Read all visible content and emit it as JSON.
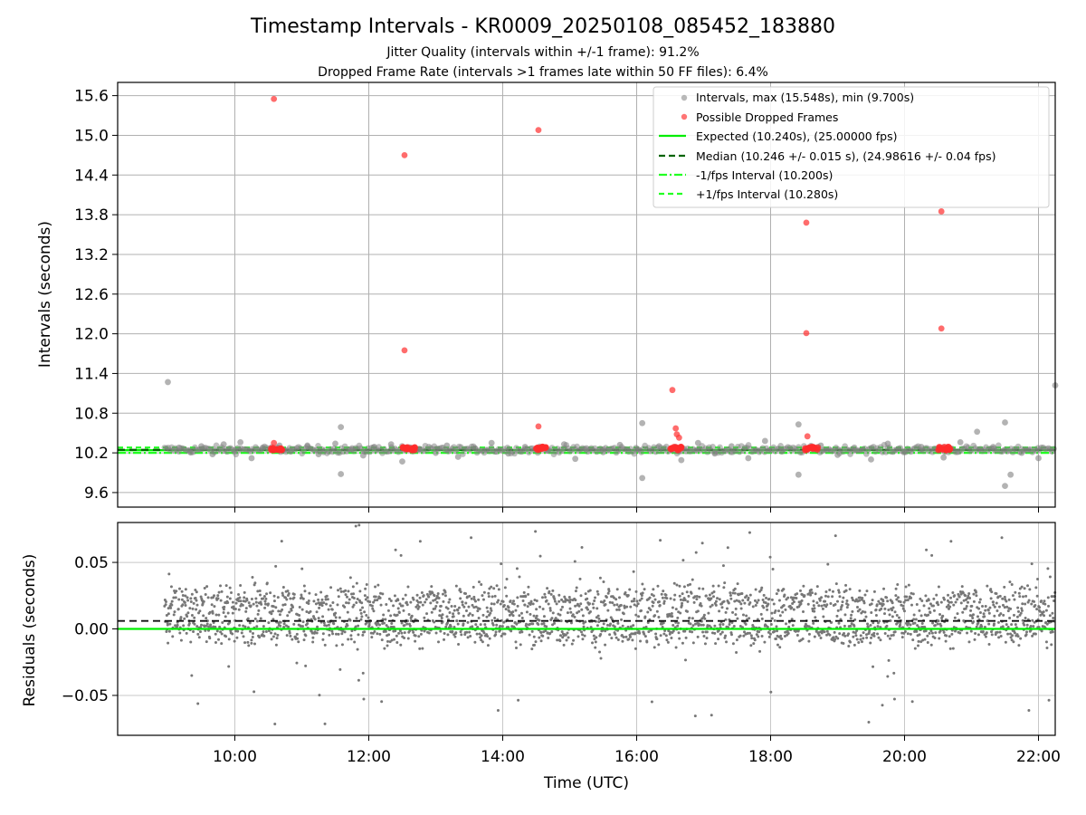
{
  "figure": {
    "title": "Timestamp Intervals - KR0009_20250108_085452_183880",
    "subtitle_1": "Jitter Quality (intervals within +/-1 frame): 91.2%",
    "subtitle_2": "Dropped Frame Rate (intervals >1 frames late within 50 FF files): 6.4%"
  },
  "chart_data": [
    {
      "type": "scatter",
      "ylabel": "Intervals (seconds)",
      "xlabel": "",
      "xlim": [
        "08:15",
        "22:15"
      ],
      "ylim": [
        9.38,
        15.8
      ],
      "yticks": [
        "9.6",
        "10.2",
        "10.8",
        "11.4",
        "12.0",
        "12.6",
        "13.2",
        "13.8",
        "14.4",
        "15.0",
        "15.6"
      ],
      "grid": true,
      "legend_placement": "upper-right",
      "legend": [
        "Intervals, max (15.548s), min (9.700s)",
        "Possible Dropped Frames",
        "Expected (10.240s), (25.00000 fps)",
        "Median (10.246 +/- 0.015 s), (24.98616 +/- 0.04 fps)",
        "-1/fps Interval (10.200s)",
        "+1/fps Interval (10.280s)"
      ],
      "reference_lines": {
        "expected": 10.24,
        "median": 10.246,
        "minus_one_fps": 10.2,
        "plus_one_fps": 10.28
      },
      "series": [
        {
          "name": "Intervals, max (15.548s), min (9.700s)",
          "color": "#808080",
          "points": [
            [
              "09:00",
              11.27
            ],
            [
              "09:10",
              10.28
            ],
            [
              "09:20",
              10.21
            ],
            [
              "09:30",
              10.3
            ],
            [
              "09:40",
              10.18
            ],
            [
              "09:50",
              10.33
            ],
            [
              "10:00",
              10.24
            ],
            [
              "10:05",
              10.36
            ],
            [
              "10:15",
              10.12
            ],
            [
              "10:25",
              10.28
            ],
            [
              "10:40",
              10.31
            ],
            [
              "10:50",
              10.22
            ],
            [
              "11:05",
              10.3
            ],
            [
              "11:15",
              10.18
            ],
            [
              "11:30",
              10.34
            ],
            [
              "11:35",
              10.59
            ],
            [
              "11:35",
              9.88
            ],
            [
              "11:45",
              10.25
            ],
            [
              "11:55",
              10.16
            ],
            [
              "12:05",
              10.29
            ],
            [
              "12:20",
              10.33
            ],
            [
              "12:30",
              10.07
            ],
            [
              "12:45",
              10.26
            ],
            [
              "13:00",
              10.2
            ],
            [
              "13:10",
              10.31
            ],
            [
              "13:20",
              10.14
            ],
            [
              "13:35",
              10.27
            ],
            [
              "13:50",
              10.35
            ],
            [
              "14:05",
              10.19
            ],
            [
              "14:20",
              10.29
            ],
            [
              "14:40",
              10.23
            ],
            [
              "14:55",
              10.33
            ],
            [
              "15:05",
              10.11
            ],
            [
              "15:15",
              10.27
            ],
            [
              "15:30",
              10.21
            ],
            [
              "15:45",
              10.32
            ],
            [
              "16:00",
              10.25
            ],
            [
              "16:05",
              10.65
            ],
            [
              "16:05",
              9.82
            ],
            [
              "16:20",
              10.3
            ],
            [
              "16:40",
              10.09
            ],
            [
              "16:55",
              10.35
            ],
            [
              "17:10",
              10.19
            ],
            [
              "17:25",
              10.3
            ],
            [
              "17:40",
              10.12
            ],
            [
              "17:55",
              10.38
            ],
            [
              "18:10",
              10.22
            ],
            [
              "18:25",
              10.63
            ],
            [
              "18:25",
              9.87
            ],
            [
              "18:45",
              10.31
            ],
            [
              "19:00",
              10.17
            ],
            [
              "19:15",
              10.28
            ],
            [
              "19:30",
              10.1
            ],
            [
              "19:45",
              10.34
            ],
            [
              "20:00",
              10.22
            ],
            [
              "20:15",
              10.29
            ],
            [
              "20:35",
              10.13
            ],
            [
              "20:50",
              10.36
            ],
            [
              "21:05",
              10.52
            ],
            [
              "21:20",
              10.27
            ],
            [
              "21:30",
              10.66
            ],
            [
              "21:30",
              9.7
            ],
            [
              "21:35",
              9.87
            ],
            [
              "21:45",
              10.2
            ],
            [
              "22:00",
              10.12
            ],
            [
              "22:15",
              11.22
            ]
          ]
        },
        {
          "name": "Possible Dropped Frames",
          "color": "#ff3b3b",
          "points": [
            [
              "10:35",
              15.55
            ],
            [
              "10:35",
              10.35
            ],
            [
              "10:37",
              10.26
            ],
            [
              "10:40",
              10.26
            ],
            [
              "12:32",
              14.7
            ],
            [
              "12:32",
              11.75
            ],
            [
              "12:35",
              10.26
            ],
            [
              "12:38",
              10.27
            ],
            [
              "12:40",
              10.26
            ],
            [
              "14:32",
              15.08
            ],
            [
              "14:32",
              10.6
            ],
            [
              "14:35",
              10.26
            ],
            [
              "14:38",
              10.27
            ],
            [
              "16:32",
              11.15
            ],
            [
              "16:35",
              10.57
            ],
            [
              "16:36",
              10.48
            ],
            [
              "16:38",
              10.43
            ],
            [
              "16:40",
              10.27
            ],
            [
              "16:35",
              10.27
            ],
            [
              "18:32",
              13.68
            ],
            [
              "18:32",
              12.01
            ],
            [
              "18:33",
              10.45
            ],
            [
              "18:36",
              10.28
            ],
            [
              "18:38",
              10.26
            ],
            [
              "20:33",
              13.85
            ],
            [
              "20:33",
              12.08
            ],
            [
              "20:35",
              10.26
            ],
            [
              "20:38",
              10.27
            ],
            [
              "20:40",
              10.26
            ]
          ]
        }
      ]
    },
    {
      "type": "scatter",
      "ylabel": "Residuals (seconds)",
      "xlabel": "Time (UTC)",
      "xlim": [
        "08:15",
        "22:15"
      ],
      "ylim": [
        -0.08,
        0.08
      ],
      "yticks": [
        "−0.05",
        "0.00",
        "0.05"
      ],
      "xticks": [
        "10:00",
        "12:00",
        "14:00",
        "16:00",
        "18:00",
        "20:00",
        "22:00"
      ],
      "grid": true,
      "reference_lines": {
        "expected": 0.0,
        "median": 0.006
      },
      "series": [
        {
          "color": "#777777",
          "description_note": "",
          "density": {
            "x_start": "08:57",
            "x_end": "22:15",
            "clusters": [
              0.0,
              0.021
            ],
            "spread": 0.012
          }
        }
      ]
    }
  ]
}
